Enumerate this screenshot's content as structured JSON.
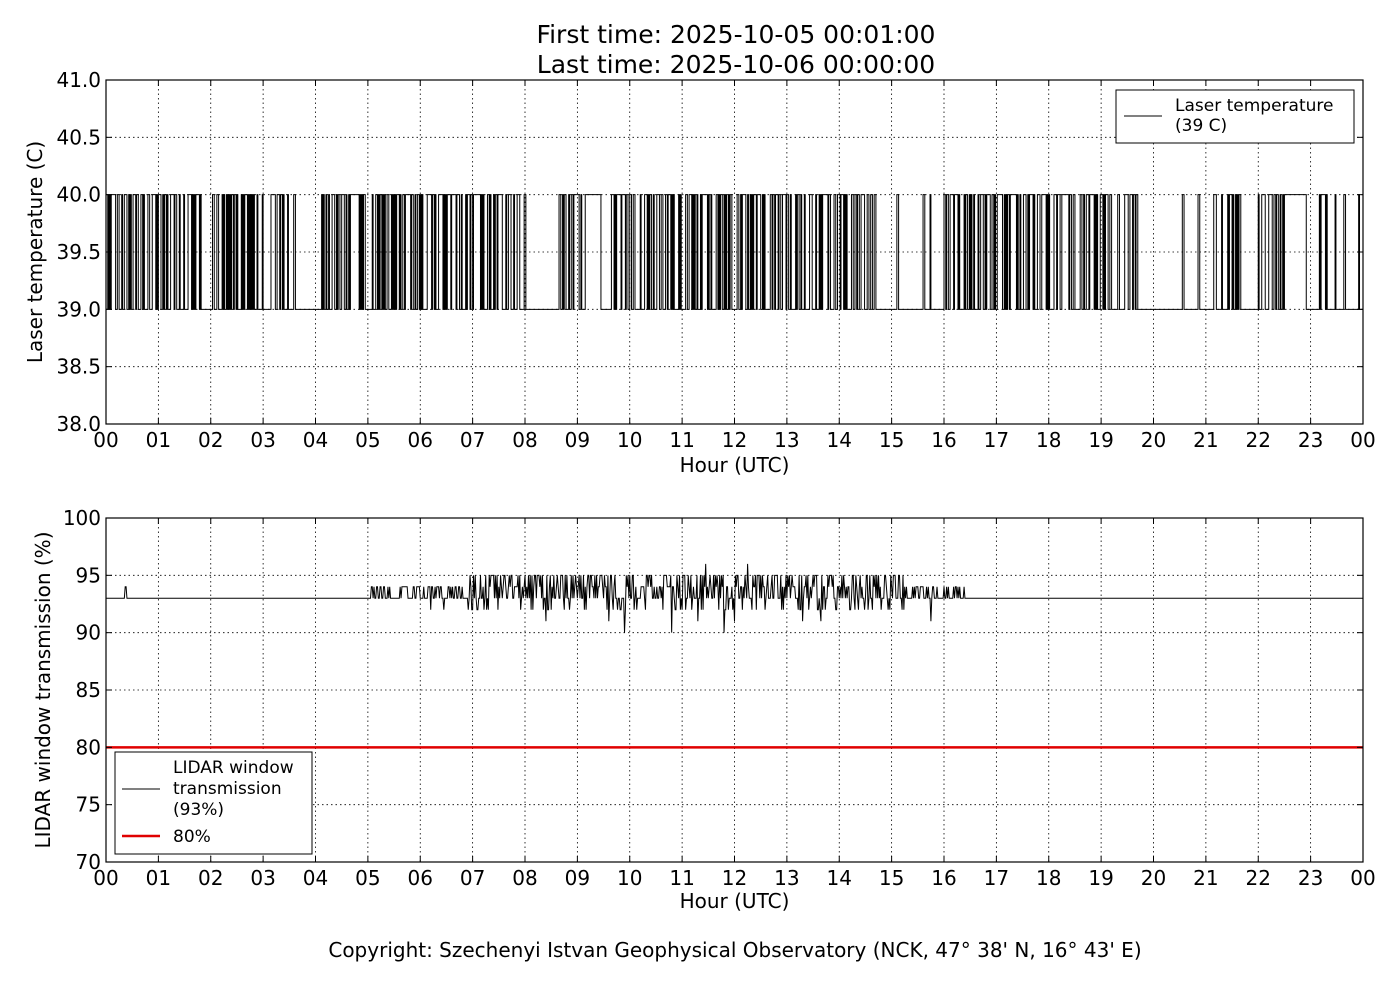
{
  "title_line1": "First time: 2025-10-05 00:01:00",
  "title_line2": "Last time: 2025-10-06 00:00:00",
  "copyright": "Copyright: Szechenyi Istvan Geophysical Observatory (NCK, 47° 38' N, 16° 43' E)",
  "chart_data": [
    {
      "type": "line",
      "xlabel": "Hour (UTC)",
      "ylabel": "Laser temperature (C)",
      "xlim": [
        0,
        24
      ],
      "ylim": [
        38.0,
        41.0
      ],
      "x_ticks": [
        "00",
        "01",
        "02",
        "03",
        "04",
        "05",
        "06",
        "07",
        "08",
        "09",
        "10",
        "11",
        "12",
        "13",
        "14",
        "15",
        "16",
        "17",
        "18",
        "19",
        "20",
        "21",
        "22",
        "23",
        "00"
      ],
      "y_ticks": [
        "38.0",
        "38.5",
        "39.0",
        "39.5",
        "40.0",
        "40.5",
        "41.0"
      ],
      "grid": true,
      "legend_position": "upper right",
      "series": [
        {
          "name": "Laser temperature (39 C)",
          "legend_lines": [
            "Laser temperature",
            "(39 C)"
          ],
          "color": "#000000",
          "kind": "toggle",
          "levels": [
            39.0,
            40.0
          ],
          "dense_toggle_intervals": [
            [
              0.0,
              0.75
            ],
            [
              0.8,
              1.8
            ],
            [
              2.0,
              2.9
            ],
            [
              2.95,
              3.55
            ],
            [
              4.1,
              4.95
            ],
            [
              5.05,
              5.65
            ],
            [
              5.65,
              6.35
            ],
            [
              6.35,
              6.9
            ],
            [
              6.9,
              7.55
            ],
            [
              7.6,
              8.0
            ],
            [
              8.6,
              9.2
            ],
            [
              9.65,
              10.3
            ],
            [
              10.3,
              10.85
            ],
            [
              10.95,
              11.8
            ],
            [
              11.8,
              12.5
            ],
            [
              12.5,
              13.2
            ],
            [
              13.2,
              13.85
            ],
            [
              13.9,
              14.7
            ],
            [
              16.0,
              16.8
            ],
            [
              16.8,
              17.6
            ],
            [
              17.6,
              18.5
            ],
            [
              18.6,
              19.2
            ],
            [
              19.3,
              19.7
            ],
            [
              21.3,
              21.7
            ],
            [
              22.0,
              22.5
            ],
            [
              23.1,
              23.3
            ]
          ],
          "sparse_toggles": [
            [
              0.87,
              0.9
            ],
            [
              1.58,
              1.62
            ],
            [
              3.58,
              3.6
            ],
            [
              4.1,
              4.12
            ],
            [
              4.9,
              4.93
            ],
            [
              7.05,
              7.07
            ],
            [
              7.85,
              7.87
            ],
            [
              9.17,
              9.45
            ],
            [
              9.75,
              9.77
            ],
            [
              10.92,
              10.95
            ],
            [
              14.68,
              14.7
            ],
            [
              15.1,
              15.12
            ],
            [
              15.6,
              15.62
            ],
            [
              15.72,
              15.74
            ],
            [
              18.3,
              18.32
            ],
            [
              19.1,
              19.12
            ],
            [
              20.55,
              20.58
            ],
            [
              20.85,
              20.87
            ],
            [
              21.15,
              21.2
            ],
            [
              22.5,
              22.9
            ],
            [
              23.45,
              23.47
            ],
            [
              23.62,
              23.65
            ],
            [
              23.9,
              23.93
            ]
          ]
        }
      ]
    },
    {
      "type": "line",
      "xlabel": "Hour (UTC)",
      "ylabel": "LIDAR window transmission (%)",
      "xlim": [
        0,
        24
      ],
      "ylim": [
        70,
        100
      ],
      "x_ticks": [
        "00",
        "01",
        "02",
        "03",
        "04",
        "05",
        "06",
        "07",
        "08",
        "09",
        "10",
        "11",
        "12",
        "13",
        "14",
        "15",
        "16",
        "17",
        "18",
        "19",
        "20",
        "21",
        "22",
        "23",
        "00"
      ],
      "y_ticks": [
        "70",
        "75",
        "80",
        "85",
        "90",
        "95",
        "100"
      ],
      "grid": true,
      "legend_position": "lower left",
      "series": [
        {
          "name": "LIDAR window transmission (93%)",
          "legend_lines": [
            "LIDAR window",
            "transmission",
            "(93%)"
          ],
          "color": "#000000",
          "kind": "noisy",
          "baseline": 93,
          "spikes": [
            [
              0.38,
              94
            ]
          ],
          "active_interval": [
            5.0,
            16.4
          ],
          "active_range": {
            "low": 92,
            "high": 95
          },
          "dips": [
            [
              6.2,
              92
            ],
            [
              6.45,
              92
            ],
            [
              7.0,
              92
            ],
            [
              8.4,
              91
            ],
            [
              9.6,
              91
            ],
            [
              9.9,
              90
            ],
            [
              10.8,
              90
            ],
            [
              11.0,
              92
            ],
            [
              11.3,
              91
            ],
            [
              11.45,
              96
            ],
            [
              11.8,
              90
            ],
            [
              12.0,
              91
            ],
            [
              12.25,
              96
            ],
            [
              12.9,
              92
            ],
            [
              13.3,
              91
            ],
            [
              13.65,
              91
            ],
            [
              14.2,
              92
            ],
            [
              14.8,
              92
            ],
            [
              15.2,
              92
            ],
            [
              15.75,
              91
            ],
            [
              15.6,
              94
            ]
          ]
        },
        {
          "name": "80%",
          "legend_lines": [
            "80%"
          ],
          "color": "#e00000",
          "kind": "constant",
          "value": 80
        }
      ]
    }
  ]
}
